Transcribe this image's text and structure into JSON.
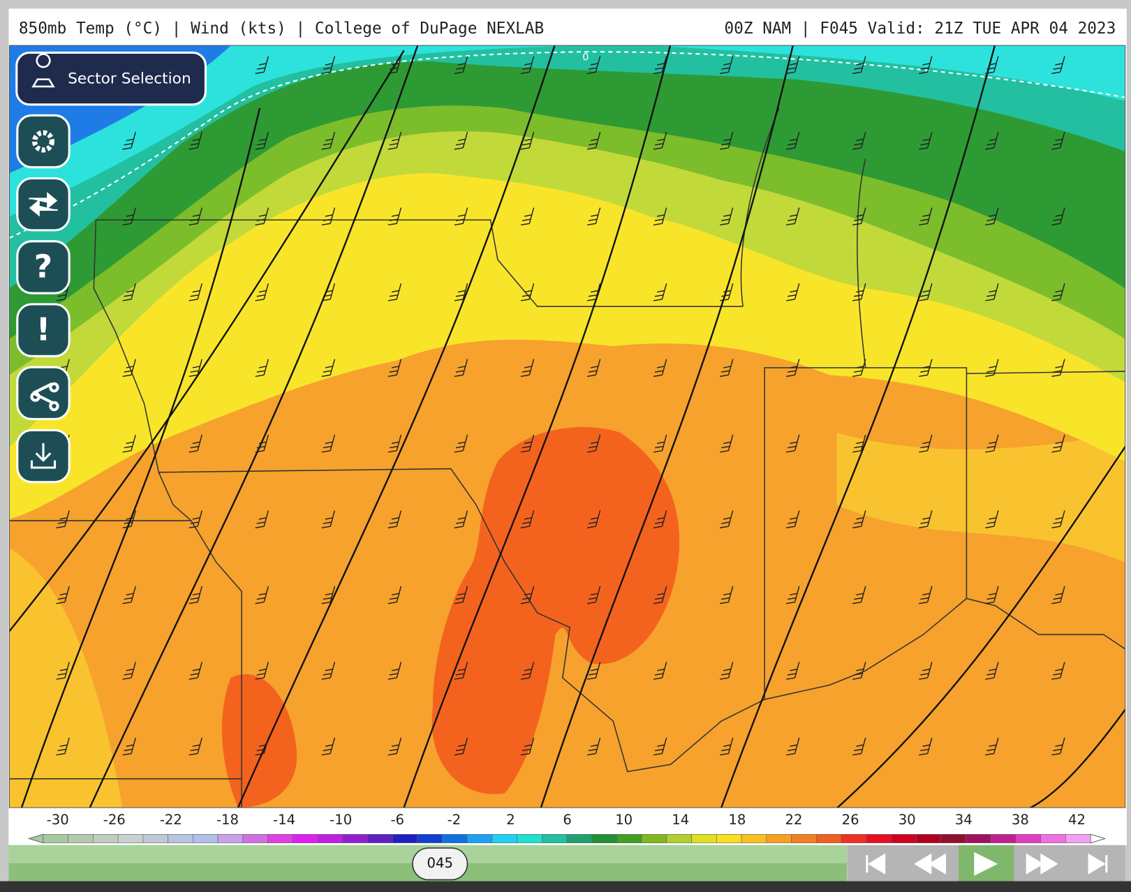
{
  "header": {
    "title": "850mb Temp (°C) | Wind (kts) | College of DuPage NEXLAB",
    "run": "00Z NAM | F045 Valid: 21Z TUE APR 04 2023"
  },
  "sidebar": {
    "sector_button": "Sector Selection",
    "help_icon": "?",
    "alert_icon": "!"
  },
  "map": {
    "contour_label": "0"
  },
  "colorbar": {
    "labels": [
      -30,
      -26,
      -22,
      -18,
      -14,
      -10,
      -6,
      -2,
      2,
      6,
      10,
      14,
      18,
      22,
      26,
      30,
      34,
      38,
      42
    ]
  },
  "timeline": {
    "frame": "045"
  }
}
